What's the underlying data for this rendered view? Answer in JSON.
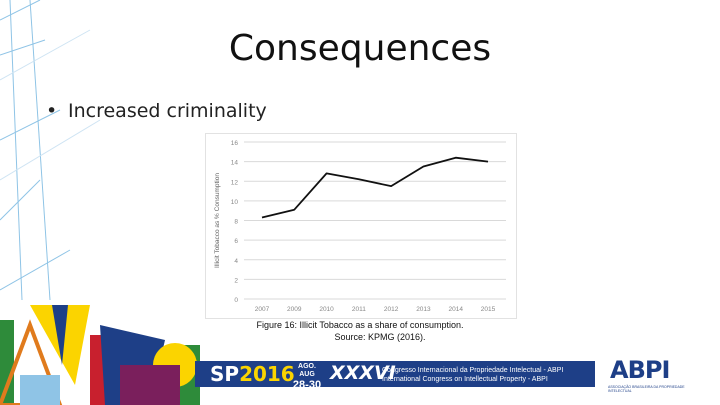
{
  "slide": {
    "title": "Consequences",
    "bullet": "Increased criminality"
  },
  "chart_data": {
    "type": "line",
    "x": [
      "2007",
      "2009",
      "2010",
      "2011",
      "2012",
      "2013",
      "2014",
      "2015"
    ],
    "series": [
      {
        "values": [
          8.3,
          9.1,
          12.8,
          12.2,
          11.5,
          13.5,
          14.4,
          14.0
        ]
      }
    ],
    "ylabel": "Illicit Tobacco as % Consumption",
    "ylim": [
      0,
      16
    ],
    "yticks": [
      0,
      2,
      4,
      6,
      8,
      10,
      12,
      14,
      16
    ],
    "grid": true,
    "line_color": "#111111",
    "grid_color": "#d9d9d9"
  },
  "caption": {
    "line1": "Figure 16: Illicit Tobacco as a share of consumption.",
    "line2": "Source: KPMG (2016)."
  },
  "footer": {
    "sp": "SP",
    "year": "2016",
    "months": "AGO. AUG",
    "days": "28-30",
    "roman": "XXXVI",
    "congress_pt": "Congresso Internacional da Propriedade Intelectual - ABPI",
    "congress_en": "International Congress on Intellectual Property - ABPI",
    "logo": "ABPI",
    "logo_sub": "ASSOCIAÇÃO BRASILEIRA DA PROPRIEDADE INTELECTUAL",
    "colors": {
      "navy": "#1e3f87",
      "yellow": "#fbd400",
      "green": "#2e8b3a",
      "red": "#c8202e"
    }
  }
}
